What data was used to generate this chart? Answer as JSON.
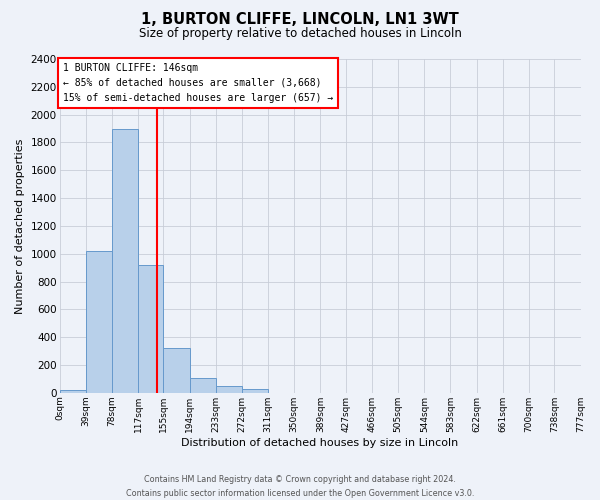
{
  "title": "1, BURTON CLIFFE, LINCOLN, LN1 3WT",
  "subtitle": "Size of property relative to detached houses in Lincoln",
  "xlabel": "Distribution of detached houses by size in Lincoln",
  "ylabel": "Number of detached properties",
  "bin_edges": [
    0,
    39,
    78,
    117,
    155,
    194,
    233,
    272,
    311,
    350,
    389,
    427,
    466,
    505,
    544,
    583,
    622,
    661,
    700,
    738,
    777
  ],
  "bin_labels": [
    "0sqm",
    "39sqm",
    "78sqm",
    "117sqm",
    "155sqm",
    "194sqm",
    "233sqm",
    "272sqm",
    "311sqm",
    "350sqm",
    "389sqm",
    "427sqm",
    "466sqm",
    "505sqm",
    "544sqm",
    "583sqm",
    "622sqm",
    "661sqm",
    "700sqm",
    "738sqm",
    "777sqm"
  ],
  "bar_heights": [
    20,
    1020,
    1900,
    920,
    320,
    105,
    50,
    25,
    0,
    0,
    0,
    0,
    0,
    0,
    0,
    0,
    0,
    0,
    0,
    0
  ],
  "bar_color": "#b8d0ea",
  "bar_edge_color": "#6699cc",
  "property_line_x": 146,
  "property_line_color": "red",
  "annotation_title": "1 BURTON CLIFFE: 146sqm",
  "annotation_line1": "← 85% of detached houses are smaller (3,668)",
  "annotation_line2": "15% of semi-detached houses are larger (657) →",
  "annotation_box_edgecolor": "red",
  "annotation_text_color": "black",
  "ylim": [
    0,
    2400
  ],
  "yticks": [
    0,
    200,
    400,
    600,
    800,
    1000,
    1200,
    1400,
    1600,
    1800,
    2000,
    2200,
    2400
  ],
  "footer_line1": "Contains HM Land Registry data © Crown copyright and database right 2024.",
  "footer_line2": "Contains public sector information licensed under the Open Government Licence v3.0.",
  "background_color": "#eef2f9",
  "plot_background_color": "#eef2f9",
  "grid_color": "#c8cdd8"
}
